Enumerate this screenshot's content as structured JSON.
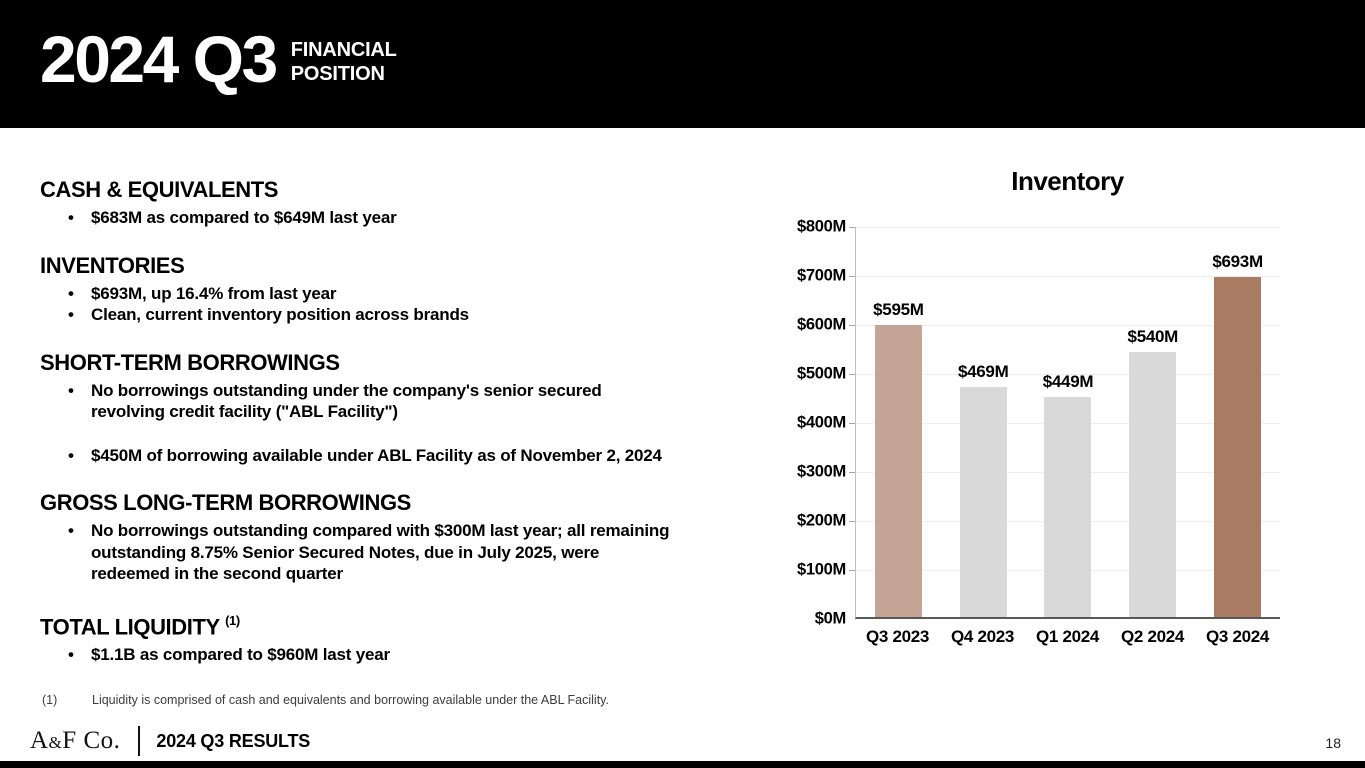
{
  "slide": {
    "header": {
      "title": "2024 Q3",
      "subtitle_lines": [
        "FINANCIAL",
        "POSITION"
      ]
    },
    "sections": [
      {
        "heading": "CASH & EQUIVALENTS",
        "bullets": [
          "$683M as compared to $649M last year"
        ]
      },
      {
        "heading": "INVENTORIES",
        "bullets": [
          "$693M, up 16.4% from last year",
          "Clean, current inventory position across brands"
        ]
      },
      {
        "heading": "SHORT-TERM BORROWINGS",
        "bullets": [
          "No borrowings outstanding under the company's senior secured\nrevolving credit facility (\"ABL Facility\")",
          "$450M of borrowing available under ABL Facility as of November 2, 2024"
        ]
      },
      {
        "heading": "GROSS LONG-TERM BORROWINGS",
        "bullets": [
          "No borrowings outstanding compared with $300M last year; all remaining\noutstanding 8.75% Senior Secured Notes, due in July 2025, were\nredeemed in the second quarter"
        ]
      },
      {
        "heading": "TOTAL LIQUIDITY",
        "sup": "(1)",
        "bullets": [
          "$1.1B as compared to $960M last year"
        ]
      }
    ],
    "footnote": {
      "marker": "(1)",
      "text": "Liquidity is comprised of cash and equivalents and borrowing available under the ABL Facility."
    },
    "footer": {
      "logo": {
        "prefix": "A",
        "amp": "&",
        "suffix": "F Co."
      },
      "label": "2024 Q3 RESULTS",
      "page_number": "18"
    }
  },
  "chart_data": {
    "type": "bar",
    "title": "Inventory",
    "categories": [
      "Q3 2023",
      "Q4 2023",
      "Q1 2024",
      "Q2 2024",
      "Q3 2024"
    ],
    "values": [
      595,
      469,
      449,
      540,
      693
    ],
    "value_labels": [
      "$595M",
      "$469M",
      "$449M",
      "$540M",
      "$693M"
    ],
    "bar_colors": [
      "#c3a495",
      "#d9d9d9",
      "#d9d9d9",
      "#d9d9d9",
      "#a87b62"
    ],
    "ylim": [
      0,
      800
    ],
    "yticks": [
      0,
      100,
      200,
      300,
      400,
      500,
      600,
      700,
      800
    ],
    "ytick_labels": [
      "$0M",
      "$100M",
      "$200M",
      "$300M",
      "$400M",
      "$500M",
      "$600M",
      "$700M",
      "$800M"
    ],
    "xlabel": "",
    "ylabel": "",
    "grid": true,
    "legend_position": "none"
  },
  "colors": {
    "header_bg": "#000000",
    "prior_year_bar": "#c3a495",
    "current_quarter_bar": "#a87b62",
    "neutral_bar": "#d9d9d9"
  }
}
